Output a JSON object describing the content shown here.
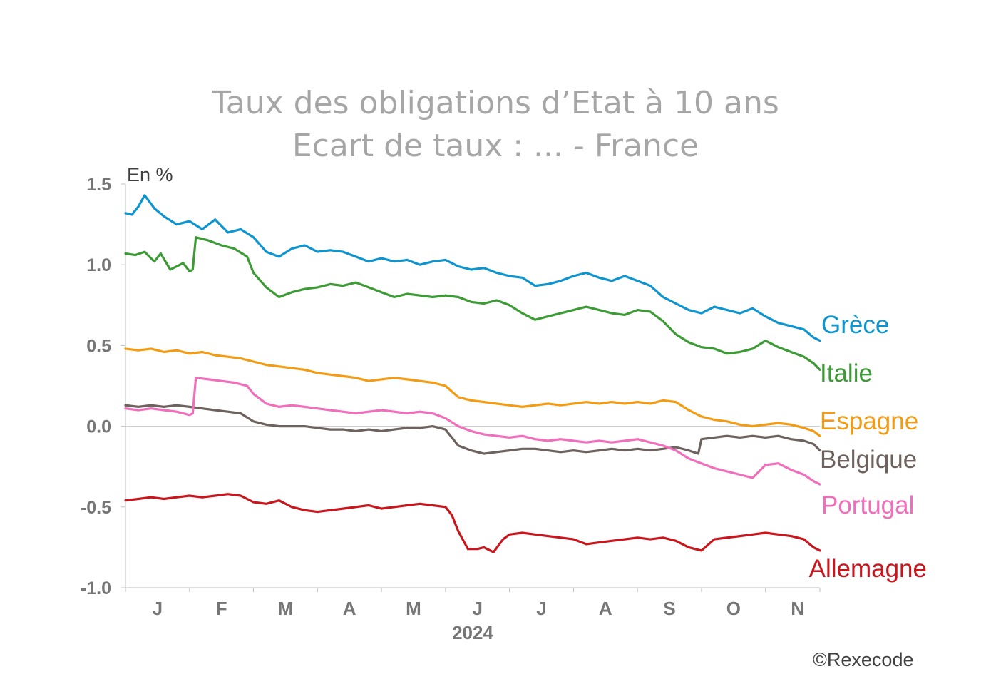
{
  "chart_data": {
    "type": "line",
    "title": "Taux des obligations d’Etat à 10 ans",
    "subtitle": "Ecart de taux : ... - France",
    "ylabel": "En %",
    "xlabel": "2024",
    "ylim": [
      -1.0,
      1.5
    ],
    "yticks": [
      "1.5",
      "1.0",
      "0.5",
      "0.0",
      "-0.5",
      "-1.0"
    ],
    "ytick_values": [
      1.5,
      1.0,
      0.5,
      0.0,
      -0.5,
      -1.0
    ],
    "months": [
      "J",
      "F",
      "M",
      "A",
      "M",
      "J",
      "J",
      "A",
      "S",
      "O",
      "N"
    ],
    "x_range": [
      0,
      10.85
    ],
    "series": [
      {
        "name": "Grèce",
        "color": "#0e95d0",
        "x": [
          0,
          0.1,
          0.2,
          0.3,
          0.45,
          0.6,
          0.8,
          1.0,
          1.2,
          1.4,
          1.6,
          1.8,
          2.0,
          2.2,
          2.4,
          2.6,
          2.8,
          3.0,
          3.2,
          3.4,
          3.6,
          3.8,
          4.0,
          4.2,
          4.4,
          4.6,
          4.8,
          5.0,
          5.2,
          5.4,
          5.6,
          5.8,
          6.0,
          6.2,
          6.4,
          6.6,
          6.8,
          7.0,
          7.2,
          7.4,
          7.6,
          7.8,
          8.0,
          8.2,
          8.4,
          8.6,
          8.8,
          9.0,
          9.2,
          9.4,
          9.6,
          9.8,
          10.0,
          10.2,
          10.4,
          10.6,
          10.75,
          10.85
        ],
        "values": [
          1.32,
          1.31,
          1.36,
          1.43,
          1.35,
          1.3,
          1.25,
          1.27,
          1.22,
          1.28,
          1.2,
          1.22,
          1.17,
          1.08,
          1.05,
          1.1,
          1.12,
          1.08,
          1.09,
          1.08,
          1.05,
          1.02,
          1.04,
          1.02,
          1.03,
          1.0,
          1.02,
          1.03,
          0.99,
          0.97,
          0.98,
          0.95,
          0.93,
          0.92,
          0.87,
          0.88,
          0.9,
          0.93,
          0.95,
          0.92,
          0.9,
          0.93,
          0.9,
          0.87,
          0.8,
          0.76,
          0.72,
          0.7,
          0.74,
          0.72,
          0.7,
          0.73,
          0.68,
          0.64,
          0.62,
          0.6,
          0.55,
          0.53
        ]
      },
      {
        "name": "Italie",
        "color": "#3c9b35",
        "x": [
          0,
          0.15,
          0.3,
          0.45,
          0.55,
          0.7,
          0.9,
          1.0,
          1.05,
          1.1,
          1.3,
          1.5,
          1.7,
          1.9,
          2.0,
          2.2,
          2.4,
          2.6,
          2.8,
          3.0,
          3.2,
          3.4,
          3.6,
          3.8,
          4.0,
          4.2,
          4.4,
          4.6,
          4.8,
          5.0,
          5.2,
          5.4,
          5.6,
          5.8,
          6.0,
          6.2,
          6.4,
          6.6,
          6.8,
          7.0,
          7.2,
          7.4,
          7.6,
          7.8,
          8.0,
          8.2,
          8.4,
          8.6,
          8.8,
          9.0,
          9.2,
          9.4,
          9.6,
          9.8,
          10.0,
          10.2,
          10.4,
          10.6,
          10.75,
          10.85
        ],
        "values": [
          1.07,
          1.06,
          1.08,
          1.02,
          1.07,
          0.97,
          1.01,
          0.96,
          0.97,
          1.17,
          1.15,
          1.12,
          1.1,
          1.05,
          0.95,
          0.86,
          0.8,
          0.83,
          0.85,
          0.86,
          0.88,
          0.87,
          0.89,
          0.86,
          0.83,
          0.8,
          0.82,
          0.81,
          0.8,
          0.81,
          0.8,
          0.77,
          0.76,
          0.78,
          0.75,
          0.7,
          0.66,
          0.68,
          0.7,
          0.72,
          0.74,
          0.72,
          0.7,
          0.69,
          0.72,
          0.71,
          0.65,
          0.57,
          0.52,
          0.49,
          0.48,
          0.45,
          0.46,
          0.48,
          0.53,
          0.49,
          0.46,
          0.43,
          0.39,
          0.35
        ]
      },
      {
        "name": "Espagne",
        "color": "#f49b14",
        "x": [
          0,
          0.2,
          0.4,
          0.6,
          0.8,
          1.0,
          1.2,
          1.4,
          1.6,
          1.8,
          2.0,
          2.2,
          2.4,
          2.6,
          2.8,
          3.0,
          3.2,
          3.4,
          3.6,
          3.8,
          4.0,
          4.2,
          4.4,
          4.6,
          4.8,
          5.0,
          5.2,
          5.4,
          5.6,
          5.8,
          6.0,
          6.2,
          6.4,
          6.6,
          6.8,
          7.0,
          7.2,
          7.4,
          7.6,
          7.8,
          8.0,
          8.2,
          8.4,
          8.6,
          8.8,
          9.0,
          9.2,
          9.4,
          9.6,
          9.8,
          10.0,
          10.2,
          10.4,
          10.6,
          10.75,
          10.85
        ],
        "values": [
          0.48,
          0.47,
          0.48,
          0.46,
          0.47,
          0.45,
          0.46,
          0.44,
          0.43,
          0.42,
          0.4,
          0.38,
          0.37,
          0.36,
          0.35,
          0.33,
          0.32,
          0.31,
          0.3,
          0.28,
          0.29,
          0.3,
          0.29,
          0.28,
          0.27,
          0.25,
          0.18,
          0.16,
          0.15,
          0.14,
          0.13,
          0.12,
          0.13,
          0.14,
          0.13,
          0.14,
          0.15,
          0.14,
          0.15,
          0.14,
          0.15,
          0.14,
          0.16,
          0.15,
          0.1,
          0.06,
          0.04,
          0.03,
          0.01,
          0.0,
          0.01,
          0.02,
          0.01,
          -0.01,
          -0.03,
          -0.06
        ]
      },
      {
        "name": "Belgique",
        "color": "#6e625f",
        "x": [
          0,
          0.2,
          0.4,
          0.6,
          0.8,
          1.0,
          1.2,
          1.4,
          1.6,
          1.8,
          2.0,
          2.2,
          2.4,
          2.6,
          2.8,
          3.0,
          3.2,
          3.4,
          3.6,
          3.8,
          4.0,
          4.2,
          4.4,
          4.6,
          4.8,
          5.0,
          5.2,
          5.4,
          5.6,
          5.8,
          6.0,
          6.2,
          6.4,
          6.6,
          6.8,
          7.0,
          7.2,
          7.4,
          7.6,
          7.8,
          8.0,
          8.2,
          8.4,
          8.6,
          8.8,
          8.95,
          9.0,
          9.2,
          9.4,
          9.6,
          9.8,
          10.0,
          10.2,
          10.4,
          10.6,
          10.75,
          10.85
        ],
        "values": [
          0.13,
          0.12,
          0.13,
          0.12,
          0.13,
          0.12,
          0.11,
          0.1,
          0.09,
          0.08,
          0.03,
          0.01,
          0.0,
          0.0,
          0.0,
          -0.01,
          -0.02,
          -0.02,
          -0.03,
          -0.02,
          -0.03,
          -0.02,
          -0.01,
          -0.01,
          0.0,
          -0.02,
          -0.12,
          -0.15,
          -0.17,
          -0.16,
          -0.15,
          -0.14,
          -0.14,
          -0.15,
          -0.16,
          -0.15,
          -0.16,
          -0.15,
          -0.14,
          -0.15,
          -0.14,
          -0.15,
          -0.14,
          -0.13,
          -0.15,
          -0.17,
          -0.08,
          -0.07,
          -0.06,
          -0.07,
          -0.06,
          -0.07,
          -0.06,
          -0.08,
          -0.09,
          -0.11,
          -0.15
        ]
      },
      {
        "name": "Portugal",
        "color": "#ef6fba",
        "x": [
          0,
          0.2,
          0.4,
          0.6,
          0.8,
          1.0,
          1.05,
          1.1,
          1.3,
          1.5,
          1.7,
          1.9,
          2.0,
          2.2,
          2.4,
          2.6,
          2.8,
          3.0,
          3.2,
          3.4,
          3.6,
          3.8,
          4.0,
          4.2,
          4.4,
          4.6,
          4.8,
          5.0,
          5.2,
          5.4,
          5.6,
          5.8,
          6.0,
          6.2,
          6.4,
          6.6,
          6.8,
          7.0,
          7.2,
          7.4,
          7.6,
          7.8,
          8.0,
          8.2,
          8.4,
          8.6,
          8.8,
          9.0,
          9.2,
          9.4,
          9.6,
          9.8,
          10.0,
          10.2,
          10.4,
          10.6,
          10.75,
          10.85
        ],
        "values": [
          0.11,
          0.1,
          0.11,
          0.1,
          0.09,
          0.07,
          0.08,
          0.3,
          0.29,
          0.28,
          0.27,
          0.25,
          0.2,
          0.14,
          0.12,
          0.13,
          0.12,
          0.11,
          0.1,
          0.09,
          0.08,
          0.09,
          0.1,
          0.09,
          0.08,
          0.09,
          0.08,
          0.05,
          0.0,
          -0.03,
          -0.05,
          -0.06,
          -0.07,
          -0.06,
          -0.08,
          -0.09,
          -0.08,
          -0.09,
          -0.1,
          -0.09,
          -0.1,
          -0.09,
          -0.08,
          -0.1,
          -0.12,
          -0.15,
          -0.2,
          -0.23,
          -0.26,
          -0.28,
          -0.3,
          -0.32,
          -0.24,
          -0.23,
          -0.27,
          -0.3,
          -0.34,
          -0.36
        ]
      },
      {
        "name": "Allemagne",
        "color": "#c8161d",
        "x": [
          0,
          0.2,
          0.4,
          0.6,
          0.8,
          1.0,
          1.2,
          1.4,
          1.6,
          1.8,
          2.0,
          2.2,
          2.4,
          2.6,
          2.8,
          3.0,
          3.2,
          3.4,
          3.6,
          3.8,
          4.0,
          4.2,
          4.4,
          4.6,
          4.8,
          5.0,
          5.1,
          5.2,
          5.35,
          5.5,
          5.6,
          5.75,
          5.9,
          6.0,
          6.2,
          6.4,
          6.6,
          6.8,
          7.0,
          7.2,
          7.4,
          7.6,
          7.8,
          8.0,
          8.2,
          8.4,
          8.6,
          8.8,
          9.0,
          9.2,
          9.4,
          9.6,
          9.8,
          10.0,
          10.2,
          10.4,
          10.6,
          10.75,
          10.85
        ],
        "values": [
          -0.46,
          -0.45,
          -0.44,
          -0.45,
          -0.44,
          -0.43,
          -0.44,
          -0.43,
          -0.42,
          -0.43,
          -0.47,
          -0.48,
          -0.46,
          -0.5,
          -0.52,
          -0.53,
          -0.52,
          -0.51,
          -0.5,
          -0.49,
          -0.51,
          -0.5,
          -0.49,
          -0.48,
          -0.49,
          -0.5,
          -0.55,
          -0.65,
          -0.76,
          -0.76,
          -0.75,
          -0.78,
          -0.7,
          -0.67,
          -0.66,
          -0.67,
          -0.68,
          -0.69,
          -0.7,
          -0.73,
          -0.72,
          -0.71,
          -0.7,
          -0.69,
          -0.7,
          -0.69,
          -0.71,
          -0.75,
          -0.77,
          -0.7,
          -0.69,
          -0.68,
          -0.67,
          -0.66,
          -0.67,
          -0.68,
          -0.7,
          -0.75,
          -0.77
        ]
      }
    ]
  },
  "footer": {
    "copyright": "©Rexecode"
  }
}
